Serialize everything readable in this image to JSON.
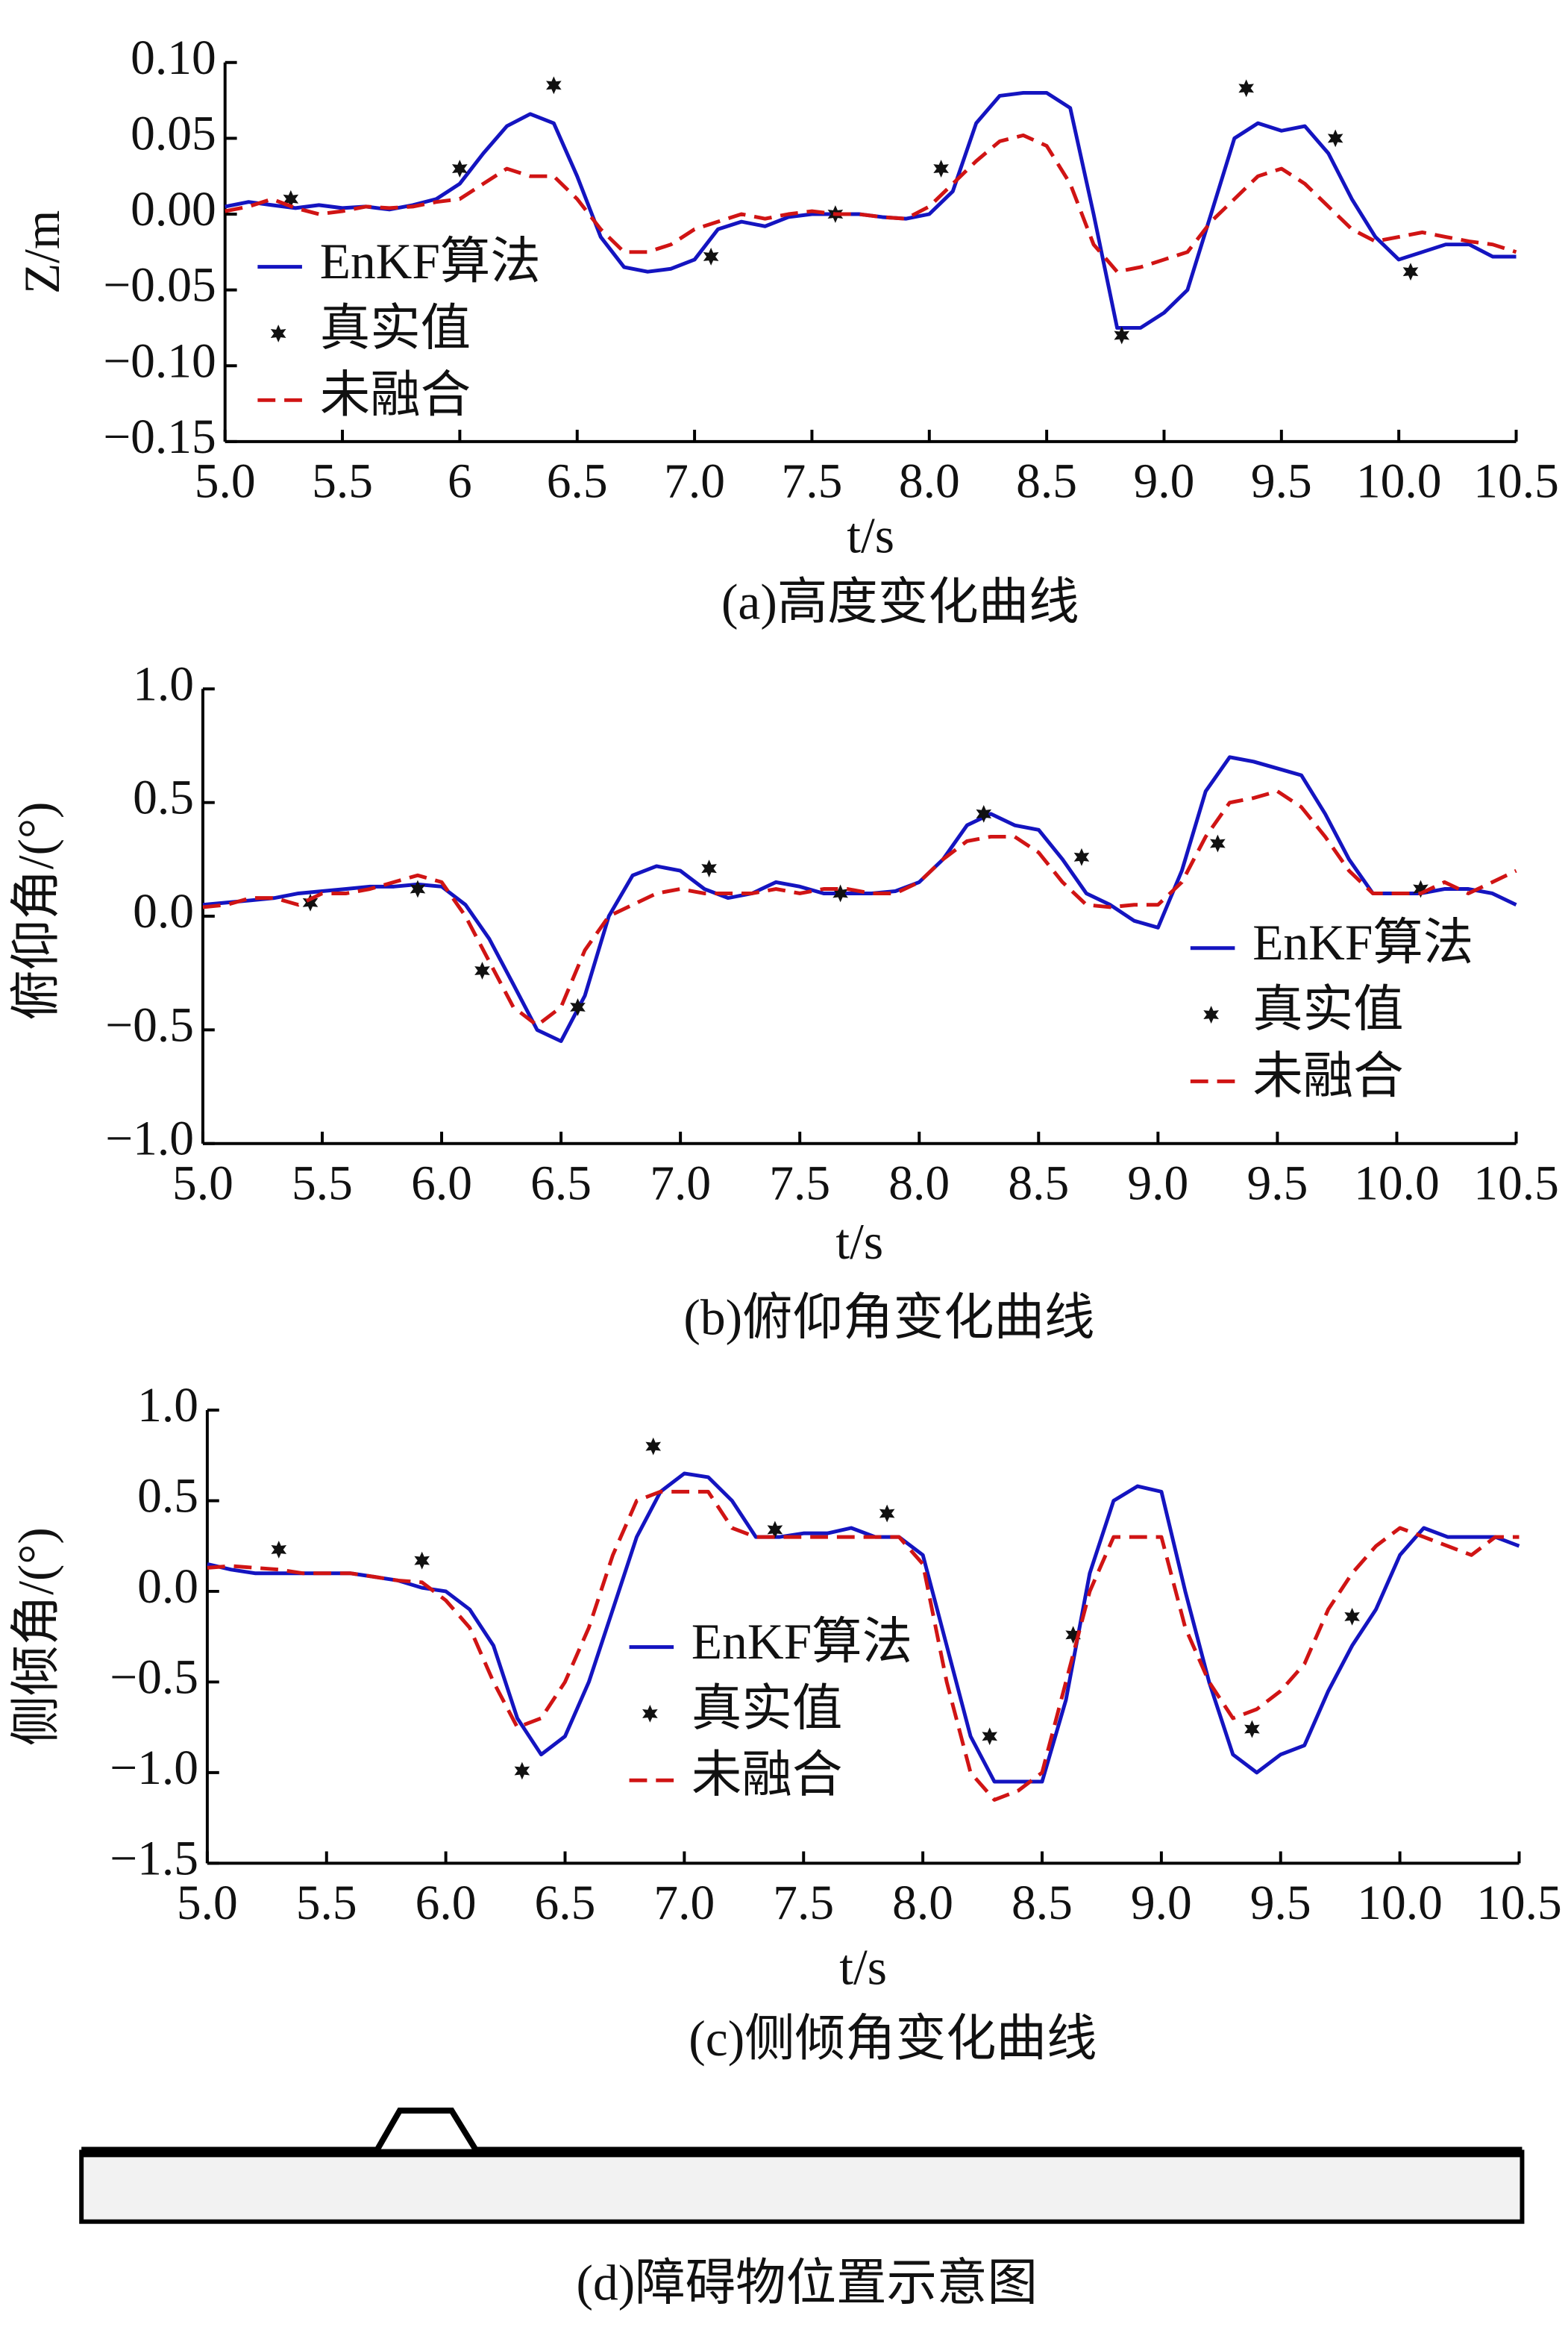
{
  "chart_data": [
    {
      "type": "line",
      "title": "(a)高度变化曲线",
      "x_label": "t/s",
      "y_label": "Z/m",
      "legend": "center left",
      "xlim": [
        5.0,
        10.5
      ],
      "ylim": [
        -0.15,
        0.1
      ],
      "xticks": [
        {
          "value": 5.0,
          "label": "5.0"
        },
        5.5,
        6.0,
        {
          "value": 6.5,
          "label": "6.5"
        },
        {
          "value": 7.0,
          "label": "7.0"
        },
        7.5,
        {
          "value": 8.0,
          "label": "8.0"
        },
        8.5,
        {
          "value": 9.0,
          "label": "9.0"
        },
        9.5,
        {
          "value": 10.0,
          "label": "10.0"
        },
        10.5
      ],
      "yticks": [
        {
          "value": 0.1,
          "label": "0.10"
        },
        0.05,
        {
          "value": 0.0,
          "label": "0.00"
        },
        {
          "value": -0.05,
          "label": "−0.05"
        },
        {
          "value": -0.1,
          "label": "−0.10"
        },
        {
          "value": -0.15,
          "label": "−0.15"
        }
      ],
      "x": [
        5.0,
        5.1,
        5.2,
        5.3,
        5.4,
        5.5,
        5.6,
        5.7,
        5.8,
        5.9,
        6.0,
        6.1,
        6.2,
        6.3,
        6.4,
        6.5,
        6.6,
        6.7,
        6.8,
        6.9,
        7.0,
        7.1,
        7.2,
        7.3,
        7.4,
        7.5,
        7.6,
        7.7,
        7.8,
        7.9,
        8.0,
        8.1,
        8.2,
        8.3,
        8.4,
        8.5,
        8.6,
        8.7,
        8.8,
        8.9,
        9.0,
        9.1,
        9.2,
        9.3,
        9.4,
        9.5,
        9.6,
        9.7,
        9.8,
        9.9,
        10.0,
        10.1,
        10.2,
        10.3,
        10.4,
        10.5
      ],
      "series": [
        {
          "name": "EnKF算法",
          "color": "#1414c0",
          "style": "solid",
          "values": [
            0.005,
            0.008,
            0.006,
            0.004,
            0.006,
            0.004,
            0.005,
            0.003,
            0.006,
            0.01,
            0.02,
            0.04,
            0.058,
            0.066,
            0.06,
            0.025,
            -0.015,
            -0.035,
            -0.038,
            -0.036,
            -0.03,
            -0.01,
            -0.005,
            -0.008,
            -0.002,
            0.0,
            0.0,
            0.0,
            -0.002,
            -0.003,
            0.0,
            0.015,
            0.06,
            0.078,
            0.08,
            0.08,
            0.07,
            0.0,
            -0.075,
            -0.075,
            -0.065,
            -0.05,
            0.0,
            0.05,
            0.06,
            0.055,
            0.058,
            0.04,
            0.01,
            -0.015,
            -0.03,
            -0.025,
            -0.02,
            -0.02,
            -0.028,
            -0.028
          ]
        },
        {
          "name": "真实值",
          "color": "#111111",
          "marker": "star",
          "x": [
            5.28,
            6.0,
            6.4,
            7.07,
            7.6,
            8.05,
            8.82,
            9.35,
            9.73,
            10.05
          ],
          "values": [
            0.01,
            0.03,
            0.085,
            -0.028,
            0.0,
            0.03,
            -0.08,
            0.083,
            0.05,
            -0.038
          ]
        },
        {
          "name": "未融合",
          "color": "#d01414",
          "style": "dashed",
          "values": [
            0.002,
            0.005,
            0.01,
            0.004,
            0.0,
            0.002,
            0.005,
            0.004,
            0.005,
            0.008,
            0.01,
            0.02,
            0.03,
            0.025,
            0.025,
            0.01,
            -0.01,
            -0.025,
            -0.025,
            -0.02,
            -0.01,
            -0.005,
            0.0,
            -0.003,
            0.0,
            0.002,
            0.0,
            0.0,
            -0.002,
            -0.003,
            0.005,
            0.02,
            0.035,
            0.048,
            0.052,
            0.045,
            0.02,
            -0.02,
            -0.038,
            -0.035,
            -0.03,
            -0.025,
            -0.005,
            0.01,
            0.025,
            0.03,
            0.02,
            0.005,
            -0.01,
            -0.018,
            -0.015,
            -0.012,
            -0.015,
            -0.018,
            -0.02,
            -0.025
          ]
        }
      ]
    },
    {
      "type": "line",
      "title": "(b)俯仰角变化曲线",
      "x_label": "t/s",
      "y_label": "俯仰角/(°)",
      "legend": "lower right",
      "xlim": [
        5.0,
        10.5
      ],
      "ylim": [
        -1.0,
        1.0
      ],
      "xticks": [
        {
          "value": 5.0,
          "label": "5.0"
        },
        5.5,
        {
          "value": 6.0,
          "label": "6.0"
        },
        6.5,
        {
          "value": 7.0,
          "label": "7.0"
        },
        7.5,
        {
          "value": 8.0,
          "label": "8.0"
        },
        8.5,
        {
          "value": 9.0,
          "label": "9.0"
        },
        9.5,
        {
          "value": 10.0,
          "label": "10.0"
        },
        10.5
      ],
      "yticks": [
        {
          "value": 1.0,
          "label": "1.0"
        },
        0.5,
        {
          "value": 0.0,
          "label": "0.0"
        },
        {
          "value": -0.5,
          "label": "−0.5"
        },
        {
          "value": -1.0,
          "label": "−1.0"
        }
      ],
      "x": [
        5.0,
        5.1,
        5.2,
        5.3,
        5.4,
        5.5,
        5.6,
        5.7,
        5.8,
        5.9,
        6.0,
        6.1,
        6.2,
        6.3,
        6.4,
        6.5,
        6.6,
        6.7,
        6.8,
        6.9,
        7.0,
        7.1,
        7.2,
        7.3,
        7.4,
        7.5,
        7.6,
        7.7,
        7.8,
        7.9,
        8.0,
        8.1,
        8.2,
        8.3,
        8.4,
        8.5,
        8.6,
        8.7,
        8.8,
        8.9,
        9.0,
        9.1,
        9.2,
        9.3,
        9.4,
        9.5,
        9.6,
        9.7,
        9.8,
        9.9,
        10.0,
        10.1,
        10.2,
        10.3,
        10.4,
        10.5
      ],
      "series": [
        {
          "name": "EnKF算法",
          "color": "#1414c0",
          "style": "solid",
          "values": [
            0.05,
            0.06,
            0.07,
            0.08,
            0.1,
            0.11,
            0.12,
            0.13,
            0.13,
            0.14,
            0.13,
            0.05,
            -0.1,
            -0.3,
            -0.5,
            -0.55,
            -0.35,
            0.0,
            0.18,
            0.22,
            0.2,
            0.12,
            0.08,
            0.1,
            0.15,
            0.13,
            0.1,
            0.1,
            0.1,
            0.11,
            0.15,
            0.25,
            0.4,
            0.45,
            0.4,
            0.38,
            0.25,
            0.1,
            0.05,
            -0.02,
            -0.05,
            0.2,
            0.55,
            0.7,
            0.68,
            0.65,
            0.62,
            0.45,
            0.25,
            0.1,
            0.1,
            0.1,
            0.12,
            0.12,
            0.1,
            0.05
          ]
        },
        {
          "name": "真实值",
          "color": "#111111",
          "marker": "star",
          "x": [
            5.45,
            5.9,
            6.17,
            6.57,
            7.12,
            7.67,
            8.27,
            8.68,
            9.25,
            10.1
          ],
          "values": [
            0.06,
            0.12,
            -0.24,
            -0.4,
            0.21,
            0.1,
            0.45,
            0.26,
            0.32,
            0.12
          ]
        },
        {
          "name": "未融合",
          "color": "#d01414",
          "style": "dashed",
          "values": [
            0.04,
            0.05,
            0.08,
            0.08,
            0.05,
            0.1,
            0.1,
            0.12,
            0.15,
            0.18,
            0.15,
            0.0,
            -0.2,
            -0.4,
            -0.48,
            -0.4,
            -0.15,
            0.0,
            0.05,
            0.1,
            0.12,
            0.1,
            0.1,
            0.1,
            0.12,
            0.1,
            0.12,
            0.12,
            0.1,
            0.1,
            0.15,
            0.25,
            0.33,
            0.35,
            0.35,
            0.28,
            0.15,
            0.05,
            0.04,
            0.05,
            0.05,
            0.15,
            0.35,
            0.5,
            0.52,
            0.55,
            0.48,
            0.35,
            0.2,
            0.1,
            0.1,
            0.1,
            0.15,
            0.1,
            0.15,
            0.2
          ]
        }
      ]
    },
    {
      "type": "line",
      "title": "(c)侧倾角变化曲线",
      "x_label": "t/s",
      "y_label": "侧倾角/(°)",
      "legend": "lower center",
      "xlim": [
        5.0,
        10.5
      ],
      "ylim": [
        -1.5,
        1.0
      ],
      "xticks": [
        {
          "value": 5.0,
          "label": "5.0"
        },
        5.5,
        {
          "value": 6.0,
          "label": "6.0"
        },
        6.5,
        {
          "value": 7.0,
          "label": "7.0"
        },
        7.5,
        {
          "value": 8.0,
          "label": "8.0"
        },
        8.5,
        {
          "value": 9.0,
          "label": "9.0"
        },
        9.5,
        {
          "value": 10.0,
          "label": "10.0"
        },
        10.5
      ],
      "yticks": [
        {
          "value": 1.0,
          "label": "1.0"
        },
        0.5,
        {
          "value": 0.0,
          "label": "0.0"
        },
        {
          "value": -0.5,
          "label": "−0.5"
        },
        {
          "value": -1.0,
          "label": "−1.0"
        },
        {
          "value": -1.5,
          "label": "−1.5"
        }
      ],
      "x": [
        5.0,
        5.1,
        5.2,
        5.3,
        5.4,
        5.5,
        5.6,
        5.7,
        5.8,
        5.9,
        6.0,
        6.1,
        6.2,
        6.3,
        6.4,
        6.5,
        6.6,
        6.7,
        6.8,
        6.9,
        7.0,
        7.1,
        7.2,
        7.3,
        7.4,
        7.5,
        7.6,
        7.7,
        7.8,
        7.9,
        8.0,
        8.1,
        8.2,
        8.3,
        8.4,
        8.5,
        8.6,
        8.7,
        8.8,
        8.9,
        9.0,
        9.1,
        9.2,
        9.3,
        9.4,
        9.5,
        9.6,
        9.7,
        9.8,
        9.9,
        10.0,
        10.1,
        10.2,
        10.3,
        10.4,
        10.5
      ],
      "series": [
        {
          "name": "EnKF算法",
          "color": "#1414c0",
          "style": "solid",
          "values": [
            0.15,
            0.12,
            0.1,
            0.1,
            0.1,
            0.1,
            0.1,
            0.08,
            0.06,
            0.02,
            0.0,
            -0.1,
            -0.3,
            -0.7,
            -0.9,
            -0.8,
            -0.5,
            -0.1,
            0.3,
            0.55,
            0.65,
            0.63,
            0.5,
            0.3,
            0.3,
            0.32,
            0.32,
            0.35,
            0.3,
            0.3,
            0.2,
            -0.3,
            -0.8,
            -1.05,
            -1.05,
            -1.05,
            -0.6,
            0.1,
            0.5,
            0.58,
            0.55,
            0.0,
            -0.5,
            -0.9,
            -1.0,
            -0.9,
            -0.85,
            -0.55,
            -0.3,
            -0.1,
            0.2,
            0.35,
            0.3,
            0.3,
            0.3,
            0.25
          ]
        },
        {
          "name": "真实值",
          "color": "#111111",
          "marker": "star",
          "x": [
            5.3,
            5.9,
            6.32,
            6.87,
            7.38,
            7.85,
            8.28,
            8.63,
            9.38,
            9.8
          ],
          "values": [
            0.23,
            0.17,
            -0.99,
            0.8,
            0.34,
            0.43,
            -0.8,
            -0.24,
            -0.76,
            -0.14
          ]
        },
        {
          "name": "未融合",
          "color": "#d01414",
          "style": "dashed",
          "values": [
            0.13,
            0.14,
            0.13,
            0.12,
            0.1,
            0.1,
            0.1,
            0.08,
            0.06,
            0.05,
            -0.05,
            -0.2,
            -0.5,
            -0.75,
            -0.7,
            -0.5,
            -0.2,
            0.2,
            0.5,
            0.55,
            0.55,
            0.55,
            0.35,
            0.3,
            0.3,
            0.3,
            0.3,
            0.3,
            0.3,
            0.3,
            0.15,
            -0.5,
            -1.0,
            -1.15,
            -1.1,
            -1.0,
            -0.5,
            0.0,
            0.3,
            0.3,
            0.3,
            -0.2,
            -0.5,
            -0.7,
            -0.65,
            -0.55,
            -0.4,
            -0.1,
            0.1,
            0.25,
            0.35,
            0.3,
            0.25,
            0.2,
            0.3,
            0.3
          ]
        }
      ]
    }
  ],
  "diagram": {
    "caption": "(d)障碍物位置示意图"
  }
}
